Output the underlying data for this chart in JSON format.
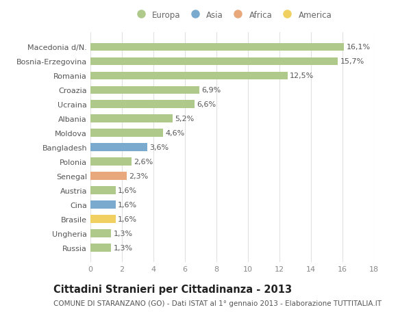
{
  "categories": [
    "Russia",
    "Ungheria",
    "Brasile",
    "Cina",
    "Austria",
    "Senegal",
    "Polonia",
    "Bangladesh",
    "Moldova",
    "Albania",
    "Ucraina",
    "Croazia",
    "Romania",
    "Bosnia-Erzegovina",
    "Macedonia d/N."
  ],
  "values": [
    1.3,
    1.3,
    1.6,
    1.6,
    1.6,
    2.3,
    2.6,
    3.6,
    4.6,
    5.2,
    6.6,
    6.9,
    12.5,
    15.7,
    16.1
  ],
  "labels": [
    "1,3%",
    "1,3%",
    "1,6%",
    "1,6%",
    "1,6%",
    "2,3%",
    "2,6%",
    "3,6%",
    "4,6%",
    "5,2%",
    "6,6%",
    "6,9%",
    "12,5%",
    "15,7%",
    "16,1%"
  ],
  "continents": [
    "Europa",
    "Europa",
    "America",
    "Asia",
    "Europa",
    "Africa",
    "Europa",
    "Asia",
    "Europa",
    "Europa",
    "Europa",
    "Europa",
    "Europa",
    "Europa",
    "Europa"
  ],
  "continent_colors": {
    "Europa": "#aec98a",
    "Asia": "#7aaace",
    "Africa": "#e8a87c",
    "America": "#f0d060"
  },
  "legend_order": [
    "Europa",
    "Asia",
    "Africa",
    "America"
  ],
  "background_color": "#ffffff",
  "title": "Cittadini Stranieri per Cittadinanza - 2013",
  "subtitle": "COMUNE DI STARANZANO (GO) - Dati ISTAT al 1° gennaio 2013 - Elaborazione TUTTITALIA.IT",
  "xlim": [
    0,
    18
  ],
  "xticks": [
    0,
    2,
    4,
    6,
    8,
    10,
    12,
    14,
    16,
    18
  ],
  "grid_color": "#e0e0e0",
  "label_fontsize": 8,
  "tick_fontsize": 8,
  "title_fontsize": 10.5,
  "subtitle_fontsize": 7.5,
  "bar_height": 0.55
}
